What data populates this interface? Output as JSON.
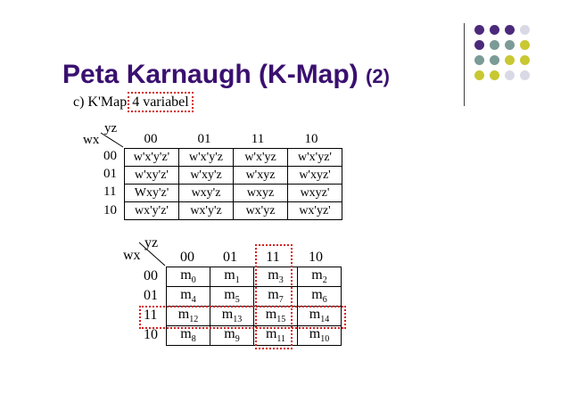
{
  "slide": {
    "title": "Peta Karnaugh (K-Map)",
    "title_suffix": "(2)",
    "caption_prefix": "c)  K'Map",
    "caption_boxed": "4 variabel"
  },
  "map1": {
    "row_var": "wx",
    "col_var": "yz",
    "col_headers": [
      "00",
      "01",
      "11",
      "10"
    ],
    "row_headers": [
      "00",
      "01",
      "11",
      "10"
    ],
    "cells": [
      [
        "w'x'y'z'",
        "w'x'y'z",
        "w'x'yz",
        "w'x'yz'"
      ],
      [
        "w'xy'z'",
        "w'xy'z",
        "w'xyz",
        "w'xyz'"
      ],
      [
        "Wxy'z'",
        "wxy'z",
        "wxyz",
        "wxyz'"
      ],
      [
        "wx'y'z'",
        "wx'y'z",
        "wx'yz",
        "wx'yz'"
      ]
    ]
  },
  "map2": {
    "row_var": "wx",
    "col_var": "yz",
    "col_headers": [
      "00",
      "01",
      "11",
      "10"
    ],
    "row_headers": [
      "00",
      "01",
      "11",
      "10"
    ],
    "cells": [
      [
        {
          "m": "m",
          "i": "0"
        },
        {
          "m": "m",
          "i": "1"
        },
        {
          "m": "m",
          "i": "3"
        },
        {
          "m": "m",
          "i": "2"
        }
      ],
      [
        {
          "m": "m",
          "i": "4"
        },
        {
          "m": "m",
          "i": "5"
        },
        {
          "m": "m",
          "i": "7"
        },
        {
          "m": "m",
          "i": "6"
        }
      ],
      [
        {
          "m": "m",
          "i": "12"
        },
        {
          "m": "m",
          "i": "13"
        },
        {
          "m": "m",
          "i": "15"
        },
        {
          "m": "m",
          "i": "14"
        }
      ],
      [
        {
          "m": "m",
          "i": "8"
        },
        {
          "m": "m",
          "i": "9"
        },
        {
          "m": "m",
          "i": "11"
        },
        {
          "m": "m",
          "i": "10"
        }
      ]
    ],
    "highlight_row": "11",
    "highlight_col": "11"
  },
  "decor": {
    "dot_colors": [
      "#4b2a7b",
      "#7b9b96",
      "#c8c832",
      "#d9d9e6"
    ]
  }
}
